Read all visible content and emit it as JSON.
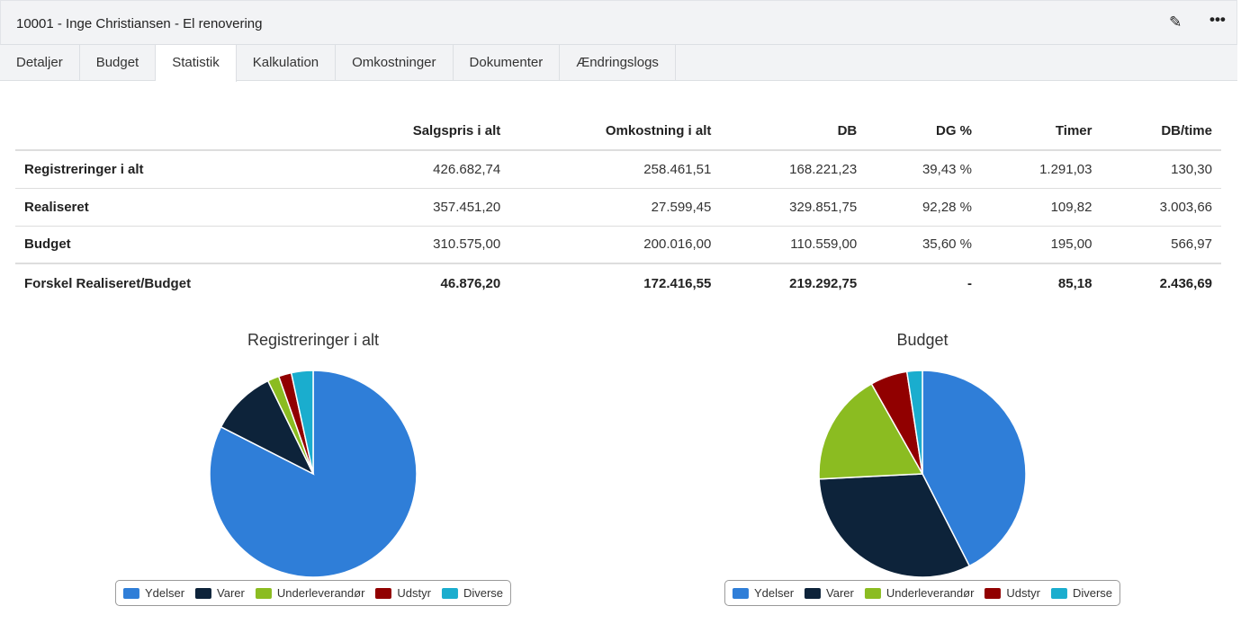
{
  "header": {
    "title": "10001 - Inge Christiansen - El renovering",
    "edit_icon": "edit-icon",
    "more_icon": "more-dots-icon"
  },
  "tabs": [
    {
      "label": "Detaljer"
    },
    {
      "label": "Budget"
    },
    {
      "label": "Statistik",
      "active": true
    },
    {
      "label": "Kalkulation"
    },
    {
      "label": "Omkostninger"
    },
    {
      "label": "Dokumenter"
    },
    {
      "label": "Ændringslogs"
    }
  ],
  "table": {
    "headers": [
      "",
      "Salgspris i alt",
      "Omkostning i alt",
      "DB",
      "DG %",
      "Timer",
      "DB/time"
    ],
    "rows": [
      [
        "Registreringer i alt",
        "426.682,74",
        "258.461,51",
        "168.221,23",
        "39,43 %",
        "1.291,03",
        "130,30"
      ],
      [
        "Realiseret",
        "357.451,20",
        "27.599,45",
        "329.851,75",
        "92,28 %",
        "109,82",
        "3.003,66"
      ],
      [
        "Budget",
        "310.575,00",
        "200.016,00",
        "110.559,00",
        "35,60 %",
        "195,00",
        "566,97"
      ]
    ],
    "summary": [
      "Forskel Realiseret/Budget",
      "46.876,20",
      "172.416,55",
      "219.292,75",
      "-",
      "85,18",
      "2.436,69"
    ]
  },
  "chart_data": [
    {
      "type": "pie",
      "title": "Registreringer i alt",
      "categories": [
        "Ydelser",
        "Varer",
        "Underleverandør",
        "Udstyr",
        "Diverse"
      ],
      "values": [
        82.5,
        10.3,
        1.8,
        2.0,
        3.4
      ],
      "colors": [
        "#2f7ed8",
        "#0d233a",
        "#8bbc21",
        "#910000",
        "#1aadce"
      ],
      "legend": "bottom"
    },
    {
      "type": "pie",
      "title": "Budget",
      "categories": [
        "Ydelser",
        "Varer",
        "Underleverandør",
        "Udstyr",
        "Diverse"
      ],
      "values": [
        42.5,
        31.7,
        17.6,
        5.8,
        2.4
      ],
      "colors": [
        "#2f7ed8",
        "#0d233a",
        "#8bbc21",
        "#910000",
        "#1aadce"
      ],
      "legend": "bottom"
    }
  ]
}
